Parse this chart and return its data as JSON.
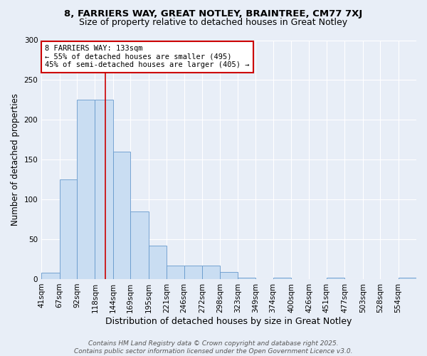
{
  "title1": "8, FARRIERS WAY, GREAT NOTLEY, BRAINTREE, CM77 7XJ",
  "title2": "Size of property relative to detached houses in Great Notley",
  "xlabel": "Distribution of detached houses by size in Great Notley",
  "ylabel": "Number of detached properties",
  "bin_labels": [
    "41sqm",
    "67sqm",
    "92sqm",
    "118sqm",
    "144sqm",
    "169sqm",
    "195sqm",
    "221sqm",
    "246sqm",
    "272sqm",
    "298sqm",
    "323sqm",
    "349sqm",
    "374sqm",
    "400sqm",
    "426sqm",
    "451sqm",
    "477sqm",
    "503sqm",
    "528sqm",
    "554sqm"
  ],
  "bin_edges": [
    41,
    67,
    92,
    118,
    144,
    169,
    195,
    221,
    246,
    272,
    298,
    323,
    349,
    374,
    400,
    426,
    451,
    477,
    503,
    528,
    554,
    580
  ],
  "bar_values": [
    8,
    125,
    225,
    225,
    160,
    85,
    42,
    17,
    17,
    17,
    9,
    2,
    0,
    2,
    0,
    0,
    2,
    0,
    0,
    0,
    2
  ],
  "bar_color": "#c9ddf2",
  "bar_edge_color": "#6699cc",
  "property_size": 133,
  "vline_color": "#cc0000",
  "annotation_line1": "8 FARRIERS WAY: 133sqm",
  "annotation_line2": "← 55% of detached houses are smaller (495)",
  "annotation_line3": "45% of semi-detached houses are larger (405) →",
  "annotation_box_facecolor": "#ffffff",
  "annotation_box_edgecolor": "#cc0000",
  "ylim": [
    0,
    300
  ],
  "yticks": [
    0,
    50,
    100,
    150,
    200,
    250,
    300
  ],
  "footer1": "Contains HM Land Registry data © Crown copyright and database right 2025.",
  "footer2": "Contains public sector information licensed under the Open Government Licence v3.0.",
  "bg_color": "#e8eef7",
  "plot_bg_color": "#e8eef7",
  "title1_fontsize": 9.5,
  "title2_fontsize": 9,
  "xlabel_fontsize": 9,
  "ylabel_fontsize": 8.5,
  "tick_fontsize": 7.5,
  "annot_fontsize": 7.5,
  "footer_fontsize": 6.5
}
